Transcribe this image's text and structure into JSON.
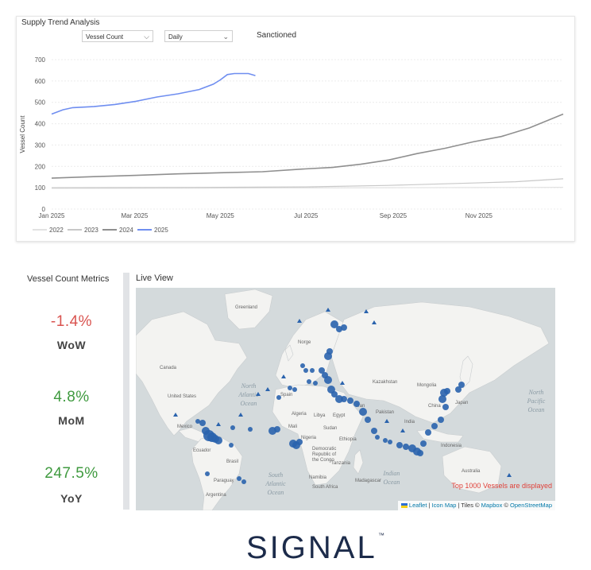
{
  "trend": {
    "title": "Supply Trend Analysis",
    "metric_select": "Vessel Count",
    "period_select": "Daily",
    "filter_label": "Sanctioned"
  },
  "chart_data": {
    "type": "line",
    "ylabel": "Vessel Count",
    "xlabel": "",
    "ylim": [
      0,
      700
    ],
    "yticks": [
      0,
      100,
      200,
      300,
      400,
      500,
      600,
      700
    ],
    "x_tick_labels": [
      "Jan 2025",
      "Mar 2025",
      "May 2025",
      "Jul 2025",
      "Sep 2025",
      "Nov 2025"
    ],
    "x_tick_days": [
      0,
      59,
      120,
      181,
      243,
      304
    ],
    "xlim_days": [
      0,
      364
    ],
    "grid": true,
    "legend": "bottom-left",
    "series": [
      {
        "name": "2022",
        "color": "#e2e2e2",
        "points": [
          [
            0,
            97
          ],
          [
            60,
            97
          ],
          [
            120,
            98
          ],
          [
            180,
            99
          ],
          [
            240,
            100
          ],
          [
            300,
            101
          ],
          [
            364,
            102
          ]
        ]
      },
      {
        "name": "2023",
        "color": "#c8c8c8",
        "points": [
          [
            0,
            100
          ],
          [
            60,
            101
          ],
          [
            120,
            102
          ],
          [
            180,
            104
          ],
          [
            240,
            111
          ],
          [
            300,
            122
          ],
          [
            330,
            128
          ],
          [
            364,
            142
          ]
        ]
      },
      {
        "name": "2024",
        "color": "#8f8f8f",
        "points": [
          [
            0,
            145
          ],
          [
            30,
            152
          ],
          [
            60,
            158
          ],
          [
            90,
            165
          ],
          [
            120,
            170
          ],
          [
            150,
            175
          ],
          [
            180,
            188
          ],
          [
            200,
            195
          ],
          [
            220,
            210
          ],
          [
            240,
            230
          ],
          [
            260,
            260
          ],
          [
            280,
            285
          ],
          [
            300,
            315
          ],
          [
            320,
            340
          ],
          [
            340,
            380
          ],
          [
            364,
            445
          ]
        ]
      },
      {
        "name": "2025",
        "color": "#6f8ef0",
        "points": [
          [
            0,
            445
          ],
          [
            8,
            465
          ],
          [
            15,
            475
          ],
          [
            30,
            480
          ],
          [
            45,
            490
          ],
          [
            60,
            505
          ],
          [
            75,
            525
          ],
          [
            90,
            540
          ],
          [
            105,
            560
          ],
          [
            115,
            585
          ],
          [
            120,
            605
          ],
          [
            125,
            630
          ],
          [
            130,
            635
          ],
          [
            140,
            635
          ],
          [
            145,
            625
          ]
        ]
      }
    ]
  },
  "metrics": {
    "title": "Vessel Count Metrics",
    "items": [
      {
        "value": "-1.4%",
        "label": "WoW",
        "color": "#d9534f"
      },
      {
        "value": "4.8%",
        "label": "MoM",
        "color": "#3f9a3f"
      },
      {
        "value": "247.5%",
        "label": "YoY",
        "color": "#3f9a3f"
      }
    ]
  },
  "live_view": {
    "title": "Live View",
    "note": "Top 1000 Vessels are displayed",
    "attribution": {
      "leaflet": "Leaflet",
      "sep1": " | ",
      "iconmap": "Icon Map",
      "tiles": " | Tiles © ",
      "mapbox": "Mapbox",
      "copy": " © ",
      "osm": "OpenStreetMap"
    },
    "labels": {
      "greenland": "Greenland",
      "canada": "Canada",
      "united_states": "United States",
      "mexico": "Mexico",
      "ecuador": "Ecuador",
      "brazil": "Brasil",
      "paraguay": "Paraguay",
      "argentina": "Argentina",
      "north_atlantic_1": "North",
      "north_atlantic_2": "Atlantic",
      "north_atlantic_3": "Ocean",
      "south_atlantic_1": "South",
      "south_atlantic_2": "Atlantic",
      "south_atlantic_3": "Ocean",
      "north_pacific_1": "North",
      "north_pacific_2": "Pacific",
      "north_pacific_3": "Ocean",
      "indian_1": "Indian",
      "indian_2": "Ocean",
      "kazakhstan": "Kazakhstan",
      "mongolia": "Mongolia",
      "china": "China",
      "japan": "Japan",
      "india": "India",
      "pakistan": "Pakistan",
      "iran": "Iran",
      "algeria": "Algeria",
      "libya": "Libya",
      "egypt": "Egypt",
      "nigeria": "Nigeria",
      "sudan": "Sudan",
      "ethiopia": "Ethiopia",
      "drc_1": "Democratic",
      "drc_2": "Republic of",
      "drc_3": "the Congo",
      "tanzania": "Tanzania",
      "namibia": "Namibia",
      "south_africa": "South Africa",
      "madagascar": "Madagascar",
      "indonesia": "Indonesia",
      "australia": "Australia",
      "norway": "Norge",
      "spain": "Spain",
      "mali": "Mali"
    },
    "vessel_color": "#2a63ad",
    "map_background": "#d4dadc",
    "land_color": "#f3f3f1"
  },
  "brand": {
    "logo_text": "SIGNAL",
    "trademark": "™",
    "color": "#1c2b4a"
  }
}
